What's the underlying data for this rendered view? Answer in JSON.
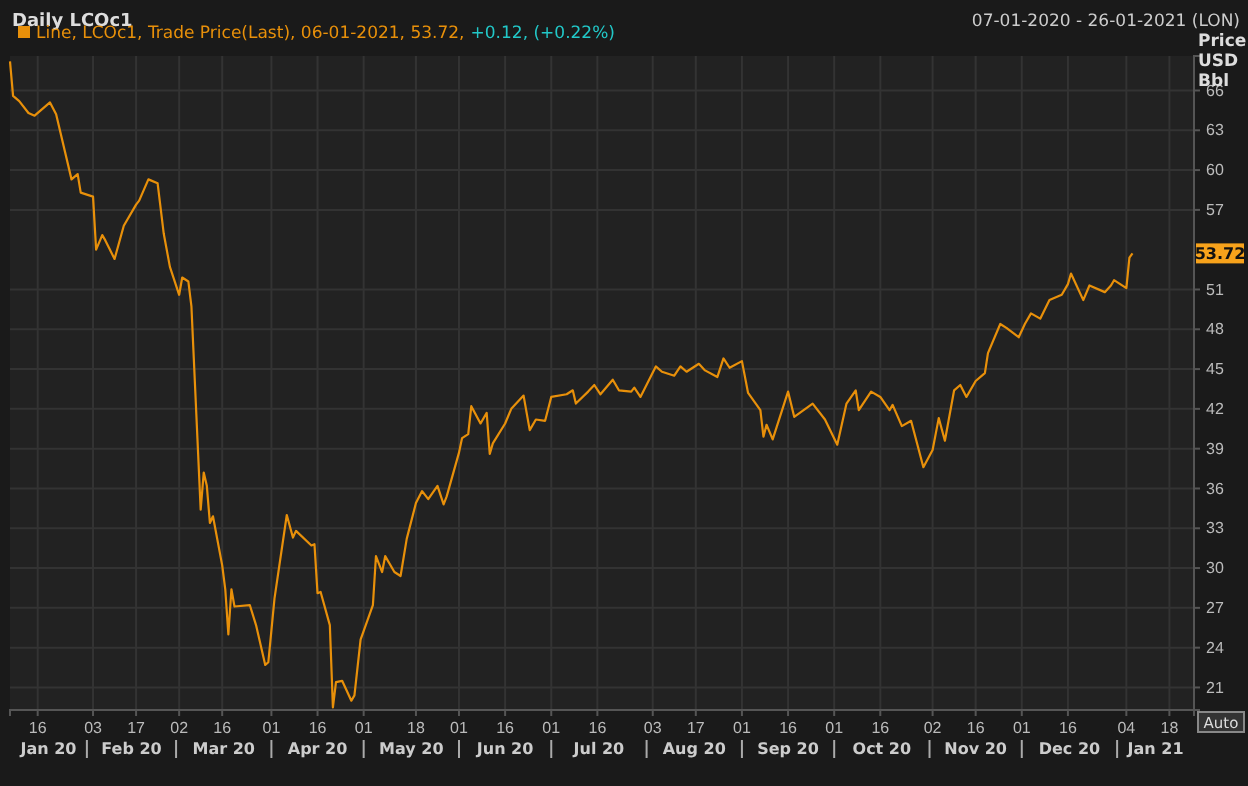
{
  "chart_data": {
    "type": "line",
    "title": "Daily LCOc1",
    "subtitle": "07-01-2020 - 26-01-2021 (LON)",
    "ylabel": "Price USD Bbl",
    "x": [
      "2020-01-07",
      "2020-01-08",
      "2020-01-10",
      "2020-01-13",
      "2020-01-15",
      "2020-01-20",
      "2020-01-22",
      "2020-01-27",
      "2020-01-29",
      "2020-01-30",
      "2020-02-03",
      "2020-02-04",
      "2020-02-06",
      "2020-02-07",
      "2020-02-10",
      "2020-02-13",
      "2020-02-17",
      "2020-02-18",
      "2020-02-21",
      "2020-02-24",
      "2020-02-26",
      "2020-02-28",
      "2020-03-02",
      "2020-03-03",
      "2020-03-05",
      "2020-03-06",
      "2020-03-09",
      "2020-03-10",
      "2020-03-11",
      "2020-03-12",
      "2020-03-13",
      "2020-03-16",
      "2020-03-17",
      "2020-03-18",
      "2020-03-19",
      "2020-03-20",
      "2020-03-25",
      "2020-03-27",
      "2020-03-30",
      "2020-03-31",
      "2020-04-02",
      "2020-04-06",
      "2020-04-08",
      "2020-04-09",
      "2020-04-14",
      "2020-04-15",
      "2020-04-16",
      "2020-04-17",
      "2020-04-20",
      "2020-04-21",
      "2020-04-22",
      "2020-04-24",
      "2020-04-27",
      "2020-04-28",
      "2020-04-30",
      "2020-05-04",
      "2020-05-05",
      "2020-05-07",
      "2020-05-08",
      "2020-05-11",
      "2020-05-13",
      "2020-05-15",
      "2020-05-18",
      "2020-05-20",
      "2020-05-22",
      "2020-05-25",
      "2020-05-27",
      "2020-05-28",
      "2020-06-01",
      "2020-06-02",
      "2020-06-04",
      "2020-06-05",
      "2020-06-08",
      "2020-06-10",
      "2020-06-11",
      "2020-06-12",
      "2020-06-16",
      "2020-06-18",
      "2020-06-22",
      "2020-06-24",
      "2020-06-26",
      "2020-06-29",
      "2020-07-01",
      "2020-07-06",
      "2020-07-08",
      "2020-07-09",
      "2020-07-13",
      "2020-07-15",
      "2020-07-17",
      "2020-07-21",
      "2020-07-23",
      "2020-07-27",
      "2020-07-28",
      "2020-07-30",
      "2020-08-04",
      "2020-08-06",
      "2020-08-10",
      "2020-08-12",
      "2020-08-14",
      "2020-08-18",
      "2020-08-20",
      "2020-08-24",
      "2020-08-26",
      "2020-08-28",
      "2020-09-01",
      "2020-09-03",
      "2020-09-07",
      "2020-09-08",
      "2020-09-09",
      "2020-09-11",
      "2020-09-16",
      "2020-09-18",
      "2020-09-24",
      "2020-09-28",
      "2020-10-02",
      "2020-10-05",
      "2020-10-08",
      "2020-10-09",
      "2020-10-13",
      "2020-10-16",
      "2020-10-19",
      "2020-10-20",
      "2020-10-23",
      "2020-10-26",
      "2020-10-30",
      "2020-11-02",
      "2020-11-04",
      "2020-11-06",
      "2020-11-09",
      "2020-11-11",
      "2020-11-13",
      "2020-11-16",
      "2020-11-19",
      "2020-11-20",
      "2020-11-24",
      "2020-11-26",
      "2020-11-30",
      "2020-12-02",
      "2020-12-04",
      "2020-12-07",
      "2020-12-10",
      "2020-12-14",
      "2020-12-16",
      "2020-12-17",
      "2020-12-21",
      "2020-12-23",
      "2020-12-28",
      "2020-12-30",
      "2020-12-31",
      "2021-01-04",
      "2021-01-05",
      "2021-01-06"
    ],
    "series": [
      {
        "name": "Line, LCOc1, Trade Price(Last), 06-01-2021, 53.72,",
        "color": "#e8900a",
        "values": [
          68.2,
          65.6,
          65.2,
          64.3,
          64.1,
          65.1,
          64.2,
          59.3,
          59.7,
          58.3,
          58.0,
          54.0,
          55.1,
          54.7,
          53.3,
          55.8,
          57.4,
          57.7,
          59.3,
          59.0,
          55.2,
          52.7,
          50.6,
          51.9,
          51.6,
          49.7,
          34.4,
          37.2,
          36.2,
          33.4,
          33.9,
          30.2,
          28.4,
          25.0,
          28.4,
          27.1,
          27.2,
          25.7,
          22.7,
          22.9,
          27.7,
          34.0,
          32.3,
          32.8,
          31.7,
          31.8,
          28.1,
          28.2,
          25.7,
          19.5,
          21.4,
          21.5,
          20.0,
          20.4,
          24.6,
          27.2,
          30.9,
          29.7,
          30.9,
          29.7,
          29.4,
          32.2,
          34.9,
          35.8,
          35.2,
          36.2,
          34.8,
          35.4,
          38.7,
          39.8,
          40.1,
          42.2,
          40.9,
          41.7,
          38.6,
          39.4,
          40.9,
          42.0,
          43.0,
          40.4,
          41.2,
          41.1,
          42.9,
          43.1,
          43.4,
          42.4,
          43.3,
          43.8,
          43.1,
          44.2,
          43.4,
          43.3,
          43.6,
          42.9,
          45.2,
          44.8,
          44.5,
          45.2,
          44.8,
          45.4,
          44.9,
          44.4,
          45.8,
          45.1,
          45.6,
          43.2,
          41.9,
          39.9,
          40.8,
          39.7,
          43.3,
          41.4,
          42.4,
          41.2,
          39.3,
          42.4,
          43.4,
          41.9,
          43.3,
          42.9,
          41.9,
          42.3,
          40.7,
          41.1,
          37.6,
          38.9,
          41.3,
          39.6,
          43.4,
          43.8,
          42.9,
          44.1,
          44.7,
          46.2,
          48.4,
          48.1,
          47.4,
          48.4,
          49.2,
          48.8,
          50.2,
          50.6,
          51.4,
          52.2,
          50.2,
          51.3,
          50.8,
          51.3,
          51.7,
          51.1,
          53.4,
          53.72
        ]
      }
    ],
    "xlim": [
      "2020-01-07",
      "2021-01-26"
    ],
    "xticks": [
      {
        "value": "2020-01-16",
        "label": "16"
      },
      {
        "value": "2020-02-03",
        "label": "03"
      },
      {
        "value": "2020-02-17",
        "label": "17"
      },
      {
        "value": "2020-03-02",
        "label": "02"
      },
      {
        "value": "2020-03-16",
        "label": "16"
      },
      {
        "value": "2020-04-01",
        "label": "01"
      },
      {
        "value": "2020-04-16",
        "label": "16"
      },
      {
        "value": "2020-05-01",
        "label": "01"
      },
      {
        "value": "2020-05-18",
        "label": "18"
      },
      {
        "value": "2020-06-01",
        "label": "01"
      },
      {
        "value": "2020-06-16",
        "label": "16"
      },
      {
        "value": "2020-07-01",
        "label": "01"
      },
      {
        "value": "2020-07-16",
        "label": "16"
      },
      {
        "value": "2020-08-03",
        "label": "03"
      },
      {
        "value": "2020-08-17",
        "label": "17"
      },
      {
        "value": "2020-09-01",
        "label": "01"
      },
      {
        "value": "2020-09-16",
        "label": "16"
      },
      {
        "value": "2020-10-01",
        "label": "01"
      },
      {
        "value": "2020-10-16",
        "label": "16"
      },
      {
        "value": "2020-11-02",
        "label": "02"
      },
      {
        "value": "2020-11-16",
        "label": "16"
      },
      {
        "value": "2020-12-01",
        "label": "01"
      },
      {
        "value": "2020-12-16",
        "label": "16"
      },
      {
        "value": "2021-01-04",
        "label": "04"
      },
      {
        "value": "2021-01-18",
        "label": "18"
      }
    ],
    "ylim": [
      19.3,
      68.6
    ],
    "yticks": [
      21,
      24,
      27,
      30,
      33,
      36,
      39,
      42,
      45,
      48,
      51,
      57,
      60,
      63,
      66
    ],
    "grid": true,
    "legend": "top left",
    "annotations": [
      "+0.12, (+0.22%)",
      "Auto",
      "53.72",
      "Jan 20",
      "Feb 20",
      "Mar 20",
      "Apr 20",
      "May 20",
      "Jun 20",
      "Jul 20",
      "Aug 20",
      "Sep 20",
      "Oct 20",
      "Nov 20",
      "Dec 20",
      "Jan 21"
    ]
  }
}
